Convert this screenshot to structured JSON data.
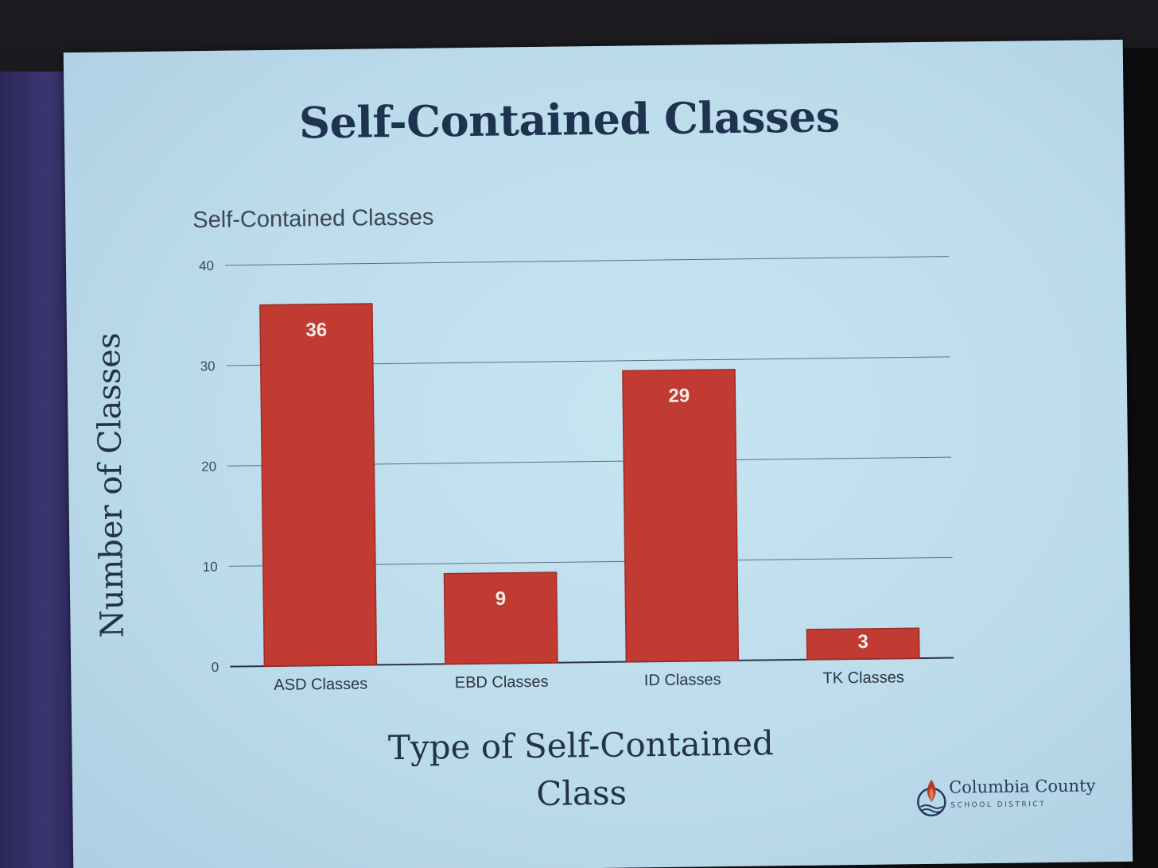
{
  "slide": {
    "title": "Self-Contained Classes"
  },
  "chart_data": {
    "type": "bar",
    "title": "Self-Contained Classes",
    "categories": [
      "ASD Classes",
      "EBD Classes",
      "ID Classes",
      "TK Classes"
    ],
    "values": [
      36,
      9,
      29,
      3
    ],
    "data_labels": [
      "36",
      "9",
      "29",
      "3"
    ],
    "xlabel": "Type of Self-Contained\nClass",
    "ylabel": "Number of Classes",
    "ylim": [
      0,
      40
    ],
    "yticks": [
      0,
      10,
      20,
      30,
      40
    ],
    "grid": true,
    "legend": "none",
    "bar_color": "#c23b32"
  },
  "logo": {
    "name": "Columbia County",
    "sub": "SCHOOL DISTRICT",
    "icon": "flame-torch-icon"
  }
}
